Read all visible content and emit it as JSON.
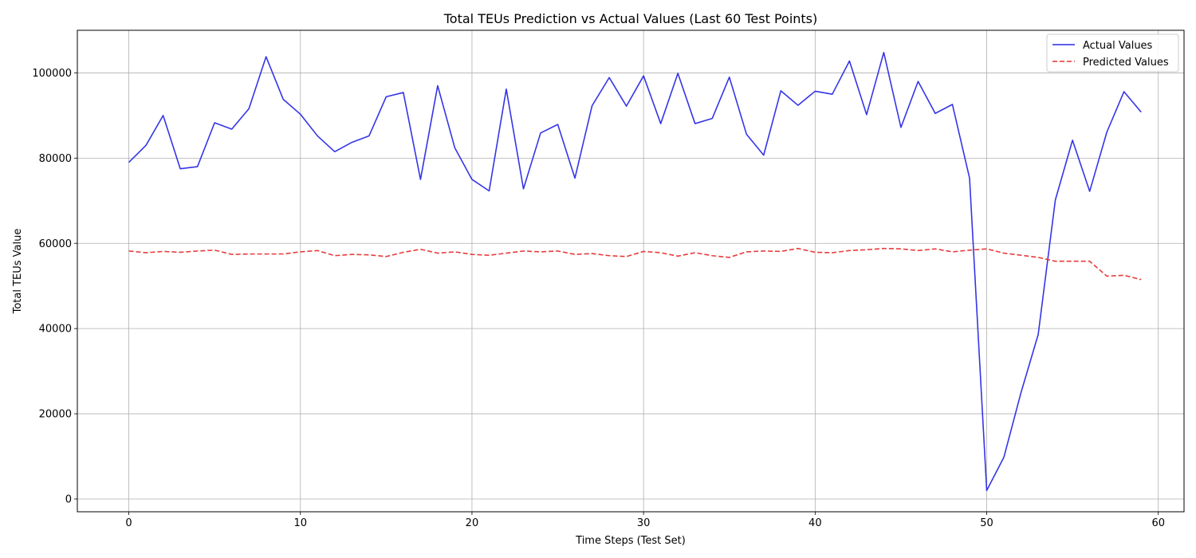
{
  "chart_data": {
    "type": "line",
    "title": "Total TEUs Prediction vs Actual Values (Last 60 Test Points)",
    "xlabel": "Time Steps (Test Set)",
    "ylabel": "Total TEUs Value",
    "xlim": [
      -3,
      61.5
    ],
    "ylim": [
      -3000,
      110000
    ],
    "xticks": [
      0,
      10,
      20,
      30,
      40,
      50,
      60
    ],
    "yticks": [
      0,
      20000,
      40000,
      60000,
      80000,
      100000
    ],
    "grid": true,
    "legend_position": "top-right",
    "x": [
      0,
      1,
      2,
      3,
      4,
      5,
      6,
      7,
      8,
      9,
      10,
      11,
      12,
      13,
      14,
      15,
      16,
      17,
      18,
      19,
      20,
      21,
      22,
      23,
      24,
      25,
      26,
      27,
      28,
      29,
      30,
      31,
      32,
      33,
      34,
      35,
      36,
      37,
      38,
      39,
      40,
      41,
      42,
      43,
      44,
      45,
      46,
      47,
      48,
      49,
      50,
      51,
      52,
      53,
      54,
      55,
      56,
      57,
      58,
      59
    ],
    "series": [
      {
        "name": "Actual Values",
        "color": "#2a2ae6",
        "style": "solid",
        "values": [
          79000,
          83000,
          90000,
          77500,
          78000,
          88300,
          86800,
          91600,
          103800,
          93800,
          90300,
          85200,
          81500,
          83700,
          85200,
          94400,
          95400,
          75000,
          97000,
          82400,
          75000,
          72300,
          96200,
          72800,
          85900,
          87900,
          75300,
          92300,
          98900,
          92200,
          99300,
          88100,
          99900,
          88100,
          89300,
          99000,
          85600,
          80700,
          95800,
          92400,
          95700,
          95000,
          102800,
          90200,
          104800,
          87200,
          98000,
          90500,
          92600,
          75300,
          2000,
          9800,
          25000,
          38600,
          70200,
          84200,
          72200,
          86100,
          95600,
          90800
        ]
      },
      {
        "name": "Predicted Values",
        "color": "#e63232",
        "style": "dashed",
        "values": [
          58200,
          57800,
          58100,
          57900,
          58200,
          58400,
          57400,
          57500,
          57500,
          57500,
          58000,
          58300,
          57100,
          57400,
          57300,
          56900,
          57900,
          58600,
          57700,
          58000,
          57400,
          57200,
          57700,
          58200,
          58000,
          58200,
          57400,
          57600,
          57100,
          56900,
          58100,
          57800,
          57000,
          57800,
          57100,
          56700,
          58000,
          58200,
          58100,
          58800,
          57900,
          57800,
          58300,
          58500,
          58800,
          58700,
          58300,
          58700,
          58000,
          58400,
          58700,
          57700,
          57200,
          56700,
          55800,
          55800,
          55800,
          52300,
          52500,
          51500
        ]
      }
    ]
  }
}
